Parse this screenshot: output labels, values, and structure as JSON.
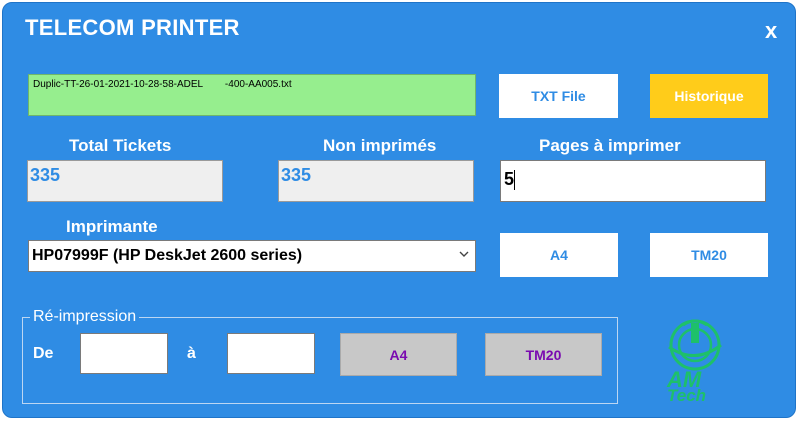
{
  "window": {
    "title": "TELECOM PRINTER",
    "close_label": "x"
  },
  "file": {
    "name": "Duplic-TT-26-01-2021-10-28-58-ADEL        -400-AA005.txt"
  },
  "buttons": {
    "txt_file": "TXT File",
    "historique": "Historique",
    "print_a4": "A4",
    "print_tm20": "TM20",
    "reprint_a4": "A4",
    "reprint_tm20": "TM20"
  },
  "stats": {
    "total_label": "Total Tickets",
    "total_value": "335",
    "non_printed_label": "Non imprimés",
    "non_printed_value": "335",
    "pages_label": "Pages à imprimer",
    "pages_value": "5"
  },
  "printer": {
    "label": "Imprimante",
    "selected": "HP07999F (HP DeskJet 2600 series)"
  },
  "reprint": {
    "legend": "Ré-impression",
    "from_label": "De",
    "to_label": "à",
    "from_value": "",
    "to_value": ""
  },
  "logo": {
    "line1": "AM",
    "line2": "Tech"
  },
  "colors": {
    "background": "#2f8ce4",
    "accent_yellow": "#ffcc1a",
    "file_green": "#96ee8e",
    "logo_green": "#1ec06a"
  }
}
